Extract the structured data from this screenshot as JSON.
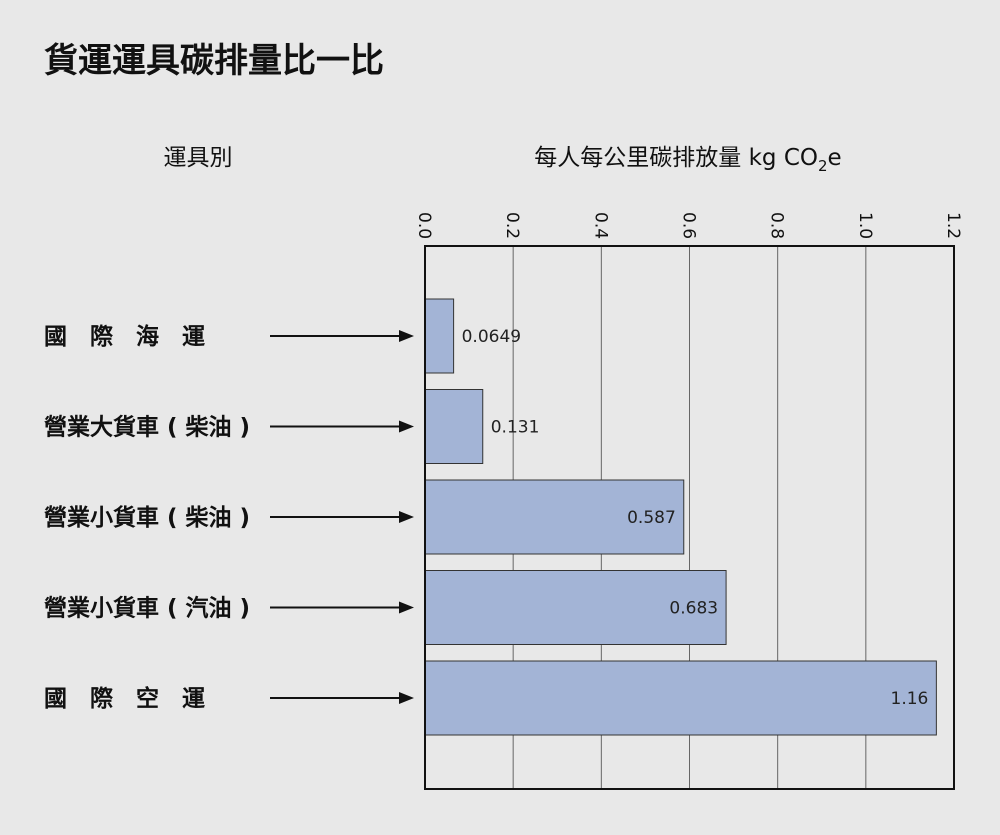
{
  "chart_data": {
    "type": "bar",
    "orientation": "horizontal",
    "title": "貨運運具碳排量比一比",
    "category_header": "運具別",
    "value_header": {
      "main": "每人每公里碳排放量 kg  CO",
      "sub": "2",
      "suffix": "e"
    },
    "categories": [
      {
        "label": "國　際　海　運",
        "value": 0.0649,
        "value_label": "0.0649"
      },
      {
        "label": "營業大貨車 ( 柴油 )",
        "value": 0.131,
        "value_label": "0.131"
      },
      {
        "label": "營業小貨車 ( 柴油 )",
        "value": 0.587,
        "value_label": "0.587"
      },
      {
        "label": "營業小貨車 ( 汽油 )",
        "value": 0.683,
        "value_label": "0.683"
      },
      {
        "label": "國　際　空　運",
        "value": 1.16,
        "value_label": "1.16"
      }
    ],
    "xlim": [
      0,
      1.2
    ],
    "ticks": [
      "0.0",
      "0.2",
      "0.4",
      "0.6",
      "0.8",
      "1.0",
      "1.2"
    ],
    "tick_values": [
      0,
      0.2,
      0.4,
      0.6,
      0.8,
      1.0,
      1.2
    ],
    "grid": true,
    "bar_color": "#a3b4d6"
  }
}
